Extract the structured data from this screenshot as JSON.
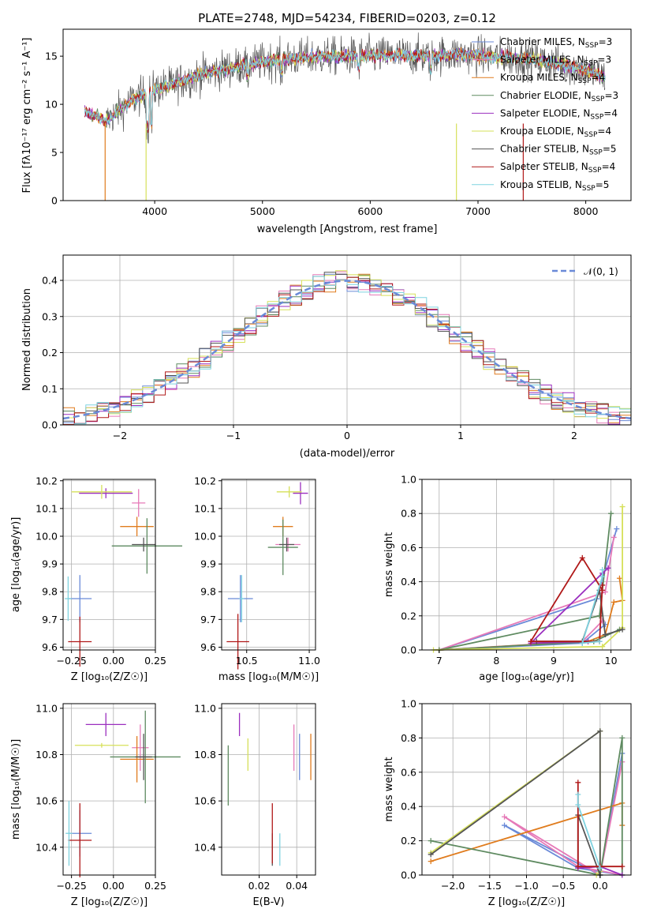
{
  "chart_data": [
    {
      "id": "spectrum",
      "type": "line",
      "title": "PLATE=2748, MJD=54234, FIBERID=0203, z=0.12",
      "xlabel": "wavelength [Angstrom, rest frame]",
      "ylabel": "Flux [fλ10⁻¹⁷ erg cm⁻² s⁻¹ A⁻¹]",
      "xlim": [
        3150,
        8420
      ],
      "ylim": [
        0,
        17.8
      ],
      "xticks": [
        4000,
        5000,
        6000,
        7000,
        8000
      ],
      "yticks": [
        0,
        5,
        10,
        15
      ],
      "legend_position": "right",
      "spectrum_profile": {
        "x": [
          3350,
          3550,
          3800,
          4000,
          4200,
          4400,
          4700,
          5000,
          5300,
          5600,
          5900,
          6200,
          6500,
          6800,
          7100,
          7400,
          7700,
          8000,
          8180
        ],
        "y": [
          9.2,
          8.3,
          10.5,
          11.5,
          12.2,
          13.0,
          13.8,
          14.4,
          14.8,
          15.0,
          15.0,
          15.1,
          15.0,
          15.2,
          15.0,
          14.8,
          14.3,
          13.6,
          12.8
        ]
      },
      "series": [
        {
          "name": "Chabrier MILES, Nₛₛₚ=3",
          "label": "Chabrier MILES, N",
          "sub": "SSP",
          "suffix": "=3",
          "color": "#6a8ad8"
        },
        {
          "name": "Salpeter MILES, Nₛₛₚ=3",
          "label": "Salpeter MILES, N",
          "sub": "SSP",
          "suffix": "=3",
          "color": "#e67ab8"
        },
        {
          "name": "Kroupa MILES, Nₛₛₚ=4",
          "label": "Kroupa MILES, N",
          "sub": "SSP",
          "suffix": "=4",
          "color": "#e07c1e"
        },
        {
          "name": "Chabrier ELODIE, Nₛₛₚ=3",
          "label": "Chabrier ELODIE, N",
          "sub": "SSP",
          "suffix": "=3",
          "color": "#5e8a60"
        },
        {
          "name": "Salpeter ELODIE, Nₛₛₚ=4",
          "label": "Salpeter ELODIE, N",
          "sub": "SSP",
          "suffix": "=4",
          "color": "#9b2fbf"
        },
        {
          "name": "Kroupa ELODIE, Nₛₛₚ=4",
          "label": "Kroupa ELODIE, N",
          "sub": "SSP",
          "suffix": "=4",
          "color": "#d6e05a"
        },
        {
          "name": "Chabrier STELIB, Nₛₛₚ=5",
          "label": "Chabrier STELIB, N",
          "sub": "SSP",
          "suffix": "=5",
          "color": "#555555"
        },
        {
          "name": "Salpeter STELIB, Nₛₛₚ=4",
          "label": "Salpeter STELIB, N",
          "sub": "SSP",
          "suffix": "=4",
          "color": "#b01818"
        },
        {
          "name": "Kroupa STELIB, Nₛₛₚ=5",
          "label": "Kroupa STELIB, N",
          "sub": "SSP",
          "suffix": "=5",
          "color": "#7fd3e0"
        }
      ]
    },
    {
      "id": "residuals",
      "type": "line",
      "xlabel": "(data-model)/error",
      "ylabel": "Normed distribution",
      "xlim": [
        -2.5,
        2.5
      ],
      "ylim": [
        0,
        0.47
      ],
      "xticks": [
        -2,
        -1,
        0,
        1,
        2
      ],
      "yticks": [
        0.0,
        0.1,
        0.2,
        0.3,
        0.4
      ],
      "legend": "𝒩(0, 1)",
      "legend_position": "top-right",
      "bin_width": 0.1,
      "grid": true
    },
    {
      "id": "age_vs_Z",
      "type": "scatter",
      "xlabel": "Z [log₁₀(Z/Z☉)]",
      "ylabel": "age  [log₁₀(age/yr)]",
      "xlim": [
        -0.3,
        0.25
      ],
      "ylim": [
        9.59,
        10.205
      ],
      "xticks": [
        -0.25,
        0.0,
        0.25
      ],
      "yticks": [
        9.6,
        9.7,
        9.8,
        9.9,
        10.0,
        10.1,
        10.2
      ],
      "grid": true,
      "points": [
        {
          "x": -0.2,
          "y": 9.775,
          "xerr": 0.07,
          "yerr": 0.085,
          "color": "#6a8ad8"
        },
        {
          "x": 0.15,
          "y": 10.12,
          "xerr": 0.04,
          "yerr": 0.05,
          "color": "#e67ab8"
        },
        {
          "x": 0.14,
          "y": 10.035,
          "xerr": 0.1,
          "yerr": 0.035,
          "color": "#e07c1e"
        },
        {
          "x": 0.2,
          "y": 9.965,
          "xerr": 0.21,
          "yerr": 0.1,
          "color": "#5e8a60"
        },
        {
          "x": -0.045,
          "y": 10.155,
          "xerr": 0.16,
          "yerr": 0.018,
          "color": "#9b2fbf"
        },
        {
          "x": -0.07,
          "y": 10.16,
          "xerr": 0.18,
          "yerr": 0.025,
          "color": "#d6e05a"
        },
        {
          "x": 0.18,
          "y": 9.97,
          "xerr": 0.07,
          "yerr": 0.025,
          "color": "#555555"
        },
        {
          "x": -0.2,
          "y": 9.62,
          "xerr": 0.07,
          "yerr": 0.09,
          "color": "#b01818"
        },
        {
          "x": -0.27,
          "y": 9.775,
          "xerr": 0.02,
          "yerr": 0.08,
          "color": "#7fd3e0"
        }
      ]
    },
    {
      "id": "age_vs_mass",
      "type": "scatter",
      "xlabel": "mass [log₁₀(M/M☉)]",
      "ylabel": "",
      "xlim": [
        10.3,
        11.05
      ],
      "ylim": [
        9.59,
        10.205
      ],
      "xticks": [
        10.5,
        11.0
      ],
      "yticks": [
        9.6,
        9.7,
        9.8,
        9.9,
        10.0,
        10.1,
        10.2
      ],
      "grid": true,
      "points": [
        {
          "x": 10.45,
          "y": 9.775,
          "xerr": 0.1,
          "yerr": 0.085,
          "color": "#6a8ad8"
        },
        {
          "x": 10.83,
          "y": 9.97,
          "xerr": 0.1,
          "yerr": 0.025,
          "color": "#e67ab8"
        },
        {
          "x": 10.79,
          "y": 10.035,
          "xerr": 0.08,
          "yerr": 0.035,
          "color": "#e07c1e"
        },
        {
          "x": 10.79,
          "y": 9.96,
          "xerr": 0.12,
          "yerr": 0.1,
          "color": "#5e8a60"
        },
        {
          "x": 10.93,
          "y": 10.155,
          "xerr": 0.06,
          "yerr": 0.04,
          "color": "#9b2fbf"
        },
        {
          "x": 10.84,
          "y": 10.16,
          "xerr": 0.1,
          "yerr": 0.02,
          "color": "#d6e05a"
        },
        {
          "x": 10.82,
          "y": 9.97,
          "xerr": 0.06,
          "yerr": 0.025,
          "color": "#555555"
        },
        {
          "x": 10.43,
          "y": 9.62,
          "xerr": 0.09,
          "yerr": 0.1,
          "color": "#b01818"
        },
        {
          "x": 10.46,
          "y": 9.775,
          "xerr": 0.02,
          "yerr": 0.085,
          "color": "#7fd3e0"
        }
      ]
    },
    {
      "id": "weight_vs_age",
      "type": "line",
      "xlabel": "age  [log₁₀(age/yr)]",
      "ylabel": "mass weight",
      "xlim": [
        6.7,
        10.35
      ],
      "ylim": [
        0,
        1.0
      ],
      "xticks": [
        7,
        8,
        9,
        10
      ],
      "yticks": [
        0.0,
        0.2,
        0.4,
        0.6,
        0.8,
        1.0
      ],
      "grid": true,
      "series": [
        {
          "color": "#6a8ad8",
          "x": [
            10.1,
            9.75,
            7.0,
            9.5,
            9.9
          ],
          "y": [
            0.71,
            0.3,
            0.0,
            0.04,
            0.15
          ]
        },
        {
          "color": "#e67ab8",
          "x": [
            10.05,
            9.9,
            7.0,
            9.5,
            9.85
          ],
          "y": [
            0.66,
            0.34,
            0.0,
            0.05,
            0.17
          ]
        },
        {
          "color": "#e07c1e",
          "x": [
            10.15,
            10.2,
            10.05,
            9.9,
            9.6,
            7.0
          ],
          "y": [
            0.42,
            0.29,
            0.28,
            0.09,
            0.05,
            0.0
          ]
        },
        {
          "color": "#5e8a60",
          "x": [
            10.0,
            9.8,
            7.0,
            9.7,
            10.15
          ],
          "y": [
            0.8,
            0.2,
            0.0,
            0.05,
            0.12
          ]
        },
        {
          "color": "#9b2fbf",
          "x": [
            9.6,
            8.6,
            9.85,
            9.95
          ],
          "y": [
            0.05,
            0.04,
            0.45,
            0.48
          ]
        },
        {
          "color": "#d6e05a",
          "x": [
            10.2,
            10.2,
            9.85,
            6.9
          ],
          "y": [
            0.84,
            0.13,
            0.02,
            0.0
          ]
        },
        {
          "color": "#555555",
          "x": [
            10.2,
            9.9,
            9.8,
            9.5,
            8.7
          ],
          "y": [
            0.12,
            0.09,
            0.35,
            0.05,
            0.05
          ]
        },
        {
          "color": "#b01818",
          "x": [
            9.85,
            9.5,
            8.6,
            9.8,
            9.85
          ],
          "y": [
            0.35,
            0.54,
            0.05,
            0.05,
            0.38
          ]
        },
        {
          "color": "#7fd3e0",
          "x": [
            9.85,
            9.85,
            9.5,
            9.8
          ],
          "y": [
            0.47,
            0.43,
            0.04,
            0.05
          ]
        }
      ]
    },
    {
      "id": "mass_vs_Z",
      "type": "scatter",
      "xlabel": "Z [log₁₀(Z/Z☉)]",
      "ylabel": "mass [log₁₀(M/M☉)]",
      "xlim": [
        -0.3,
        0.25
      ],
      "ylim": [
        10.28,
        11.02
      ],
      "xticks": [
        -0.25,
        0.0,
        0.25
      ],
      "yticks": [
        10.4,
        10.6,
        10.8,
        11.0
      ],
      "grid": true,
      "points": [
        {
          "x": -0.2,
          "y": 10.46,
          "xerr": 0.07,
          "yerr": 0.1,
          "color": "#6a8ad8"
        },
        {
          "x": 0.16,
          "y": 10.83,
          "xerr": 0.05,
          "yerr": 0.1,
          "color": "#e67ab8"
        },
        {
          "x": 0.14,
          "y": 10.78,
          "xerr": 0.1,
          "yerr": 0.1,
          "color": "#e07c1e"
        },
        {
          "x": 0.19,
          "y": 10.79,
          "xerr": 0.21,
          "yerr": 0.2,
          "color": "#5e8a60"
        },
        {
          "x": -0.045,
          "y": 10.93,
          "xerr": 0.12,
          "yerr": 0.05,
          "color": "#9b2fbf"
        },
        {
          "x": -0.07,
          "y": 10.84,
          "xerr": 0.16,
          "yerr": 0.01,
          "color": "#d6e05a"
        },
        {
          "x": 0.18,
          "y": 10.79,
          "xerr": 0.05,
          "yerr": 0.1,
          "color": "#555555"
        },
        {
          "x": -0.2,
          "y": 10.43,
          "xerr": 0.07,
          "yerr": 0.16,
          "color": "#b01818"
        },
        {
          "x": -0.265,
          "y": 10.46,
          "xerr": 0.02,
          "yerr": 0.14,
          "color": "#7fd3e0"
        }
      ]
    },
    {
      "id": "mass_vs_EBV",
      "type": "scatter",
      "xlabel": "E(B-V)",
      "ylabel": "",
      "xlim": [
        0.0,
        0.05
      ],
      "ylim": [
        10.28,
        11.02
      ],
      "xticks": [
        0.02,
        0.04
      ],
      "yticks": [
        10.4,
        10.6,
        10.8,
        11.0
      ],
      "grid": true,
      "points": [
        {
          "x": 0.0415,
          "y": 10.79,
          "yerr": 0.1,
          "color": "#6a8ad8"
        },
        {
          "x": 0.0385,
          "y": 10.83,
          "yerr": 0.1,
          "color": "#e67ab8"
        },
        {
          "x": 0.0475,
          "y": 10.79,
          "yerr": 0.1,
          "color": "#e07c1e"
        },
        {
          "x": 0.0035,
          "y": 10.71,
          "yerr": 0.13,
          "color": "#5e8a60"
        },
        {
          "x": 0.0095,
          "y": 10.93,
          "yerr": 0.05,
          "color": "#9b2fbf"
        },
        {
          "x": 0.014,
          "y": 10.8,
          "yerr": 0.07,
          "color": "#d6e05a"
        },
        {
          "x": 0.027,
          "y": 10.39,
          "yerr": 0.07,
          "color": "#555555"
        },
        {
          "x": 0.027,
          "y": 10.46,
          "yerr": 0.13,
          "color": "#b01818"
        },
        {
          "x": 0.031,
          "y": 10.39,
          "yerr": 0.07,
          "color": "#7fd3e0"
        }
      ]
    },
    {
      "id": "weight_vs_Z",
      "type": "line",
      "xlabel": "Z [log₁₀(Z/Z☉)]",
      "ylabel": "mass weight",
      "xlim": [
        -2.42,
        0.42
      ],
      "ylim": [
        0,
        1.0
      ],
      "xticks": [
        -2.0,
        -1.5,
        -1.0,
        -0.5,
        0.0
      ],
      "yticks": [
        0.0,
        0.2,
        0.4,
        0.6,
        0.8,
        1.0
      ],
      "grid": true,
      "series": [
        {
          "color": "#6a8ad8",
          "x": [
            0.3,
            0.0,
            -1.3,
            -0.3,
            0.3
          ],
          "y": [
            0.71,
            0.0,
            0.29,
            0.04,
            0.0
          ]
        },
        {
          "color": "#e67ab8",
          "x": [
            0.3,
            0.0,
            -1.3,
            -0.3,
            0.3
          ],
          "y": [
            0.66,
            0.0,
            0.34,
            0.05,
            0.0
          ]
        },
        {
          "color": "#e07c1e",
          "x": [
            -2.3,
            0.3,
            0.3
          ],
          "y": [
            0.08,
            0.42,
            0.29
          ]
        },
        {
          "color": "#5e8a60",
          "x": [
            -2.3,
            0.0,
            0.3,
            0.3
          ],
          "y": [
            0.2,
            0.0,
            0.8,
            0.0
          ]
        },
        {
          "color": "#9b2fbf",
          "x": [
            -0.3,
            0.0,
            0.3
          ],
          "y": [
            0.04,
            0.05,
            0.0
          ]
        },
        {
          "color": "#d6e05a",
          "x": [
            -2.3,
            0.0,
            0.0,
            -0.05
          ],
          "y": [
            0.13,
            0.84,
            0.02,
            0.0
          ]
        },
        {
          "color": "#555555",
          "x": [
            -2.3,
            0.0,
            0.0,
            -0.3,
            -0.3
          ],
          "y": [
            0.12,
            0.84,
            0.0,
            0.35,
            0.05
          ]
        },
        {
          "color": "#b01818",
          "x": [
            -0.3,
            -0.3,
            0.0,
            0.3
          ],
          "y": [
            0.54,
            0.05,
            0.05,
            0.05
          ]
        },
        {
          "color": "#7fd3e0",
          "x": [
            -0.3,
            -0.3,
            0.0
          ],
          "y": [
            0.47,
            0.41,
            0.04
          ]
        }
      ]
    }
  ]
}
